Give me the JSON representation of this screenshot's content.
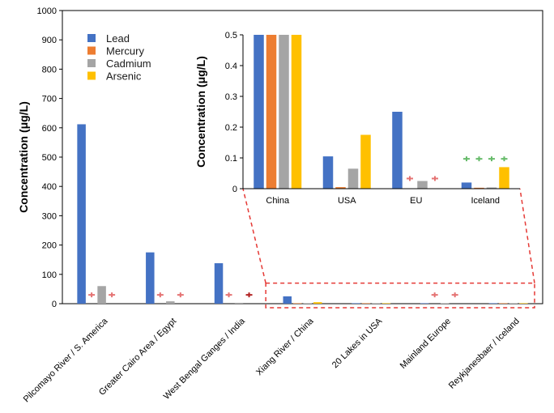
{
  "chart_data": [
    {
      "type": "bar",
      "title": "",
      "xlabel": "",
      "ylabel": "Concentration (μg/L)",
      "ylim": [
        0,
        1000
      ],
      "yticks": [
        0,
        100,
        200,
        300,
        400,
        500,
        600,
        700,
        800,
        900,
        1000
      ],
      "categories": [
        "Pilcomayo River / S. America",
        "Greater Cairo Area / Egypt",
        "West Bengal Ganges / India",
        "Xiang River / China",
        "20 Lakes in USA",
        "Mainland Europe",
        "Reykjanesbaer / Iceland"
      ],
      "series": [
        {
          "name": "Lead",
          "color": "#4472C4",
          "values": [
            612,
            175,
            138,
            25,
            0.105,
            0.25,
            0.02
          ]
        },
        {
          "name": "Mercury",
          "color": "#ED7D31",
          "values": [
            0,
            0,
            0,
            0.5,
            0.005,
            0,
            0.003
          ]
        },
        {
          "name": "Cadmium",
          "color": "#A5A5A5",
          "values": [
            60,
            8,
            3,
            1,
            0.065,
            0.025,
            0.004
          ]
        },
        {
          "name": "Arsenic",
          "color": "#FFC000",
          "values": [
            0,
            0,
            0,
            5,
            0.175,
            0,
            0.07
          ]
        }
      ],
      "markers": [
        {
          "category_index": 0,
          "series": "Mercury",
          "value": 30,
          "color": "#E57373"
        },
        {
          "category_index": 0,
          "series": "Arsenic",
          "value": 30,
          "color": "#E57373"
        },
        {
          "category_index": 1,
          "series": "Mercury",
          "value": 30,
          "color": "#E57373"
        },
        {
          "category_index": 1,
          "series": "Arsenic",
          "value": 30,
          "color": "#E57373"
        },
        {
          "category_index": 2,
          "series": "Mercury",
          "value": 30,
          "color": "#E57373"
        },
        {
          "category_index": 2,
          "series": "Arsenic",
          "value": 30,
          "color": "#B22222"
        },
        {
          "category_index": 5,
          "series": "Mercury",
          "value": 30,
          "color": "#E57373"
        },
        {
          "category_index": 5,
          "series": "Arsenic",
          "value": 30,
          "color": "#E57373"
        }
      ],
      "legend": {
        "position": "top-left",
        "entries": [
          "Lead",
          "Mercury",
          "Cadmium",
          "Arsenic"
        ]
      },
      "zoom_box": {
        "from_category_index": 3,
        "to_category_index": 6,
        "y_range": [
          0,
          70
        ],
        "color": "#E53935"
      },
      "grid": false
    },
    {
      "type": "bar",
      "title": "",
      "xlabel": "",
      "ylabel": "Concentration (μg/L)",
      "ylim": [
        0,
        0.5
      ],
      "yticks": [
        0,
        0.1,
        0.2,
        0.3,
        0.4,
        0.5
      ],
      "ytick_labels": [
        "0",
        "0.1",
        "0.2",
        "0.3",
        "0.4",
        "0.5"
      ],
      "categories": [
        "China",
        "USA",
        "EU",
        "Iceland"
      ],
      "series": [
        {
          "name": "Lead",
          "color": "#4472C4",
          "values": [
            0.5,
            0.105,
            0.25,
            0.02
          ]
        },
        {
          "name": "Mercury",
          "color": "#ED7D31",
          "values": [
            0.5,
            0.005,
            0,
            0.003
          ]
        },
        {
          "name": "Cadmium",
          "color": "#A5A5A5",
          "values": [
            0.5,
            0.065,
            0.025,
            0.004
          ]
        },
        {
          "name": "Arsenic",
          "color": "#FFC000",
          "values": [
            0.5,
            0.175,
            0,
            0.07
          ]
        }
      ],
      "markers": [
        {
          "category_index": 2,
          "series": "Mercury",
          "value": 0.033,
          "color": "#E57373"
        },
        {
          "category_index": 2,
          "series": "Arsenic",
          "value": 0.033,
          "color": "#E57373"
        },
        {
          "category_index": 3,
          "series": "Lead",
          "value": 0.097,
          "color": "#66BB6A"
        },
        {
          "category_index": 3,
          "series": "Mercury",
          "value": 0.097,
          "color": "#66BB6A"
        },
        {
          "category_index": 3,
          "series": "Cadmium",
          "value": 0.097,
          "color": "#66BB6A"
        },
        {
          "category_index": 3,
          "series": "Arsenic",
          "value": 0.097,
          "color": "#66BB6A"
        }
      ],
      "grid": false,
      "clipped_at_top": true
    }
  ]
}
